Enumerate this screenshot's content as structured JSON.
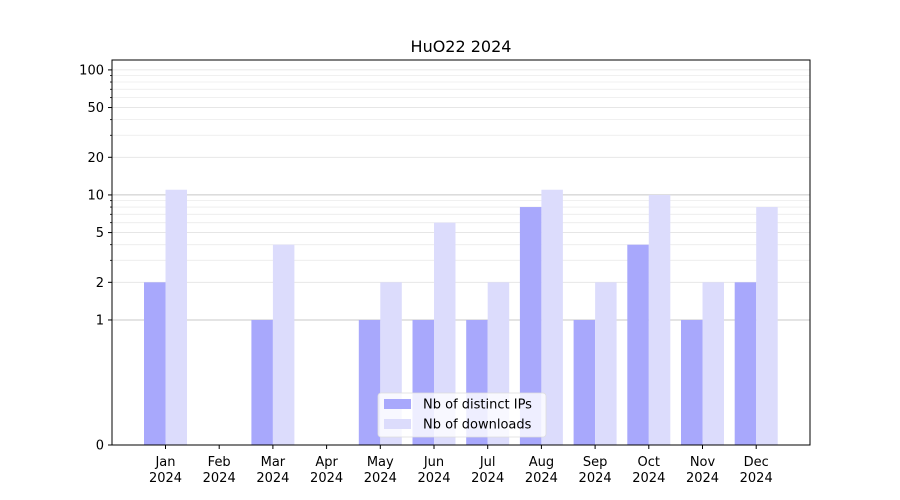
{
  "chart_data": {
    "type": "bar",
    "title": "HuO22 2024",
    "xlabel": "",
    "ylabel": "",
    "y_scale": "symlog",
    "ylim": [
      0,
      120
    ],
    "y_ticks": [
      0,
      1,
      2,
      5,
      10,
      20,
      50,
      100
    ],
    "grid": "horizontal",
    "legend_position": "lower-center",
    "categories": [
      {
        "month": "Jan",
        "year": "2024"
      },
      {
        "month": "Feb",
        "year": "2024"
      },
      {
        "month": "Mar",
        "year": "2024"
      },
      {
        "month": "Apr",
        "year": "2024"
      },
      {
        "month": "May",
        "year": "2024"
      },
      {
        "month": "Jun",
        "year": "2024"
      },
      {
        "month": "Jul",
        "year": "2024"
      },
      {
        "month": "Aug",
        "year": "2024"
      },
      {
        "month": "Sep",
        "year": "2024"
      },
      {
        "month": "Oct",
        "year": "2024"
      },
      {
        "month": "Nov",
        "year": "2024"
      },
      {
        "month": "Dec",
        "year": "2024"
      }
    ],
    "series": [
      {
        "name": "Nb of distinct IPs",
        "color": "#a8a8fc",
        "values": [
          2,
          0,
          1,
          0,
          1,
          1,
          1,
          8,
          1,
          4,
          1,
          2
        ]
      },
      {
        "name": "Nb of downloads",
        "color": "#dcdcfc",
        "values": [
          11,
          0,
          4,
          0,
          2,
          6,
          2,
          11,
          2,
          10,
          2,
          8
        ]
      }
    ]
  }
}
